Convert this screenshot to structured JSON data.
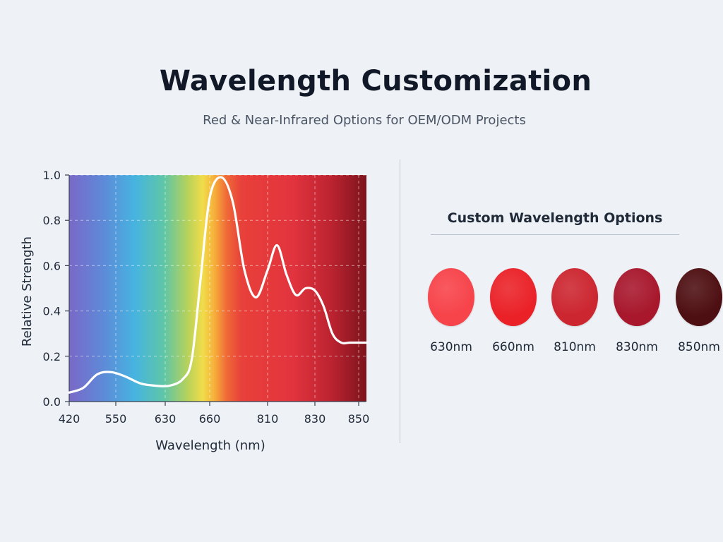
{
  "page": {
    "title": "Wavelength Customization",
    "subtitle": "Red & Near-Infrared Options for OEM/ODM Projects"
  },
  "options": {
    "heading": "Custom Wavelength Options",
    "items": [
      {
        "label": "630nm",
        "color": "#f7434a"
      },
      {
        "label": "660nm",
        "color": "#ea2228"
      },
      {
        "label": "810nm",
        "color": "#cc2630"
      },
      {
        "label": "830nm",
        "color": "#a8172c"
      },
      {
        "label": "850nm",
        "color": "#4e0f12"
      }
    ]
  },
  "chart_data": {
    "type": "area",
    "title": "",
    "xlabel": "Wavelength (nm)",
    "ylabel": "Relative Strength",
    "x_tick_labels": [
      "420",
      "550",
      "630",
      "660",
      "810",
      "830",
      "850"
    ],
    "y_ticks": [
      0.0,
      0.2,
      0.4,
      0.6,
      0.8,
      1.0
    ],
    "y_tick_labels": [
      "0.0",
      "0.2",
      "0.4",
      "0.6",
      "0.8",
      "1.0"
    ],
    "ylim": [
      0,
      1.0
    ],
    "grid": true,
    "background": "visible-spectrum gradient (violet to dark red)",
    "curve_color": "#ffffff",
    "series": [
      {
        "x_tick_position": [
          0,
          0.3,
          0.6,
          0.9,
          1.2,
          1.5,
          1.8,
          2.1,
          2.4,
          2.6,
          2.8,
          3.0,
          3.2,
          3.4,
          3.6,
          3.8,
          4.0,
          4.2,
          4.4,
          4.6,
          4.8,
          5.0,
          5.2,
          5.4,
          5.6,
          5.8,
          6.0,
          6.2,
          6.5
        ],
        "y": [
          0.04,
          0.06,
          0.12,
          0.13,
          0.11,
          0.08,
          0.07,
          0.07,
          0.1,
          0.19,
          0.55,
          0.9,
          0.99,
          0.88,
          0.58,
          0.46,
          0.58,
          0.69,
          0.56,
          0.47,
          0.5,
          0.49,
          0.42,
          0.3,
          0.26,
          0.26,
          0.26,
          0.26,
          0.26
        ]
      }
    ]
  }
}
